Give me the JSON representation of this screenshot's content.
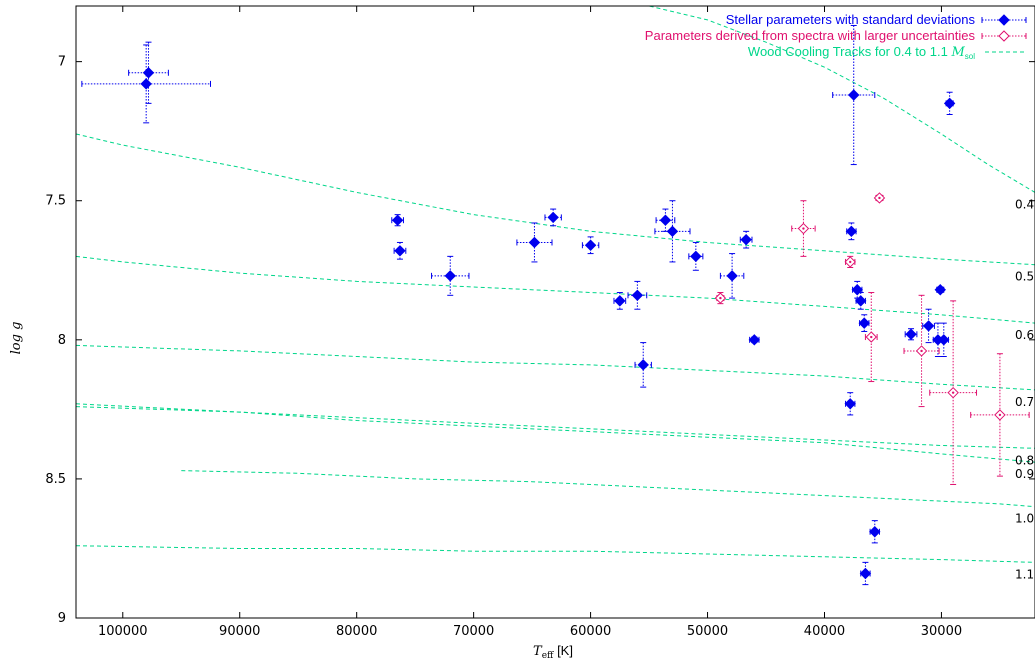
{
  "chart_data": {
    "type": "scatter",
    "xlabel": "T",
    "xlabel_sub": "eff",
    "xlabel_unit": "[K]",
    "ylabel": "log g",
    "xlim": [
      104000,
      22000
    ],
    "ylim": [
      6.8,
      9.0
    ],
    "x_reversed": true,
    "y_reversed": true,
    "x_ticks": [
      100000,
      90000,
      80000,
      70000,
      60000,
      50000,
      40000,
      30000
    ],
    "y_ticks": [
      7,
      7.5,
      8,
      8.5,
      9
    ],
    "legend_position": "top-right",
    "legend": [
      {
        "label": "Stellar parameters with standard deviations",
        "color": "#0000ee"
      },
      {
        "label": "Parameters derived from spectra with larger uncertainties",
        "color": "#e0106e"
      },
      {
        "label": "Wood Cooling Tracks for 0.4 to 1.1",
        "label_m": "M",
        "label_sub": "sol",
        "color": "#00d68a"
      }
    ],
    "series": [
      {
        "name": "Stellar parameters with standard deviations",
        "color": "#0000ee",
        "marker": "filled-diamond",
        "points": [
          {
            "x": 98000,
            "y": 7.08,
            "xerr": 5500,
            "yerr": 0.14
          },
          {
            "x": 97800,
            "y": 7.04,
            "xerr": 1700,
            "yerr": 0.11
          },
          {
            "x": 76500,
            "y": 7.57,
            "xerr": 500,
            "yerr": 0.02
          },
          {
            "x": 76300,
            "y": 7.68,
            "xerr": 500,
            "yerr": 0.03
          },
          {
            "x": 72000,
            "y": 7.77,
            "xerr": 1600,
            "yerr": 0.07
          },
          {
            "x": 64800,
            "y": 7.65,
            "xerr": 1500,
            "yerr": 0.07
          },
          {
            "x": 63200,
            "y": 7.56,
            "xerr": 700,
            "yerr": 0.03
          },
          {
            "x": 60000,
            "y": 7.66,
            "xerr": 700,
            "yerr": 0.03
          },
          {
            "x": 57500,
            "y": 7.86,
            "xerr": 500,
            "yerr": 0.03
          },
          {
            "x": 56000,
            "y": 7.84,
            "xerr": 800,
            "yerr": 0.05
          },
          {
            "x": 55500,
            "y": 8.09,
            "xerr": 700,
            "yerr": 0.08
          },
          {
            "x": 53600,
            "y": 7.57,
            "xerr": 800,
            "yerr": 0.04
          },
          {
            "x": 53000,
            "y": 7.61,
            "xerr": 1500,
            "yerr": 0.11
          },
          {
            "x": 51000,
            "y": 7.7,
            "xerr": 600,
            "yerr": 0.05
          },
          {
            "x": 47900,
            "y": 7.77,
            "xerr": 1000,
            "yerr": 0.08
          },
          {
            "x": 46700,
            "y": 7.64,
            "xerr": 500,
            "yerr": 0.03
          },
          {
            "x": 46000,
            "y": 8.0,
            "xerr": 400,
            "yerr": 0.01
          },
          {
            "x": 37500,
            "y": 7.12,
            "xerr": 1800,
            "yerr": 0.25
          },
          {
            "x": 37700,
            "y": 7.61,
            "xerr": 400,
            "yerr": 0.03
          },
          {
            "x": 37200,
            "y": 7.82,
            "xerr": 400,
            "yerr": 0.03
          },
          {
            "x": 36900,
            "y": 7.86,
            "xerr": 400,
            "yerr": 0.03
          },
          {
            "x": 36600,
            "y": 7.94,
            "xerr": 400,
            "yerr": 0.03
          },
          {
            "x": 37800,
            "y": 8.23,
            "xerr": 400,
            "yerr": 0.04
          },
          {
            "x": 35700,
            "y": 8.69,
            "xerr": 400,
            "yerr": 0.04
          },
          {
            "x": 36500,
            "y": 8.84,
            "xerr": 400,
            "yerr": 0.04
          },
          {
            "x": 32600,
            "y": 7.98,
            "xerr": 500,
            "yerr": 0.02
          },
          {
            "x": 31100,
            "y": 7.95,
            "xerr": 500,
            "yerr": 0.06
          },
          {
            "x": 30300,
            "y": 8.0,
            "xerr": 400,
            "yerr": 0.06
          },
          {
            "x": 29800,
            "y": 8.0,
            "xerr": 400,
            "yerr": 0.06
          },
          {
            "x": 30100,
            "y": 7.82,
            "xerr": 300,
            "yerr": 0.01
          },
          {
            "x": 29300,
            "y": 7.15,
            "xerr": 300,
            "yerr": 0.04
          }
        ]
      },
      {
        "name": "Parameters derived from spectra with larger uncertainties",
        "color": "#e0106e",
        "marker": "open-diamond",
        "points": [
          {
            "x": 41800,
            "y": 7.6,
            "xerr": 1000,
            "yerr": 0.1
          },
          {
            "x": 48900,
            "y": 7.85,
            "xerr": 300,
            "yerr": 0.02
          },
          {
            "x": 37800,
            "y": 7.72,
            "xerr": 400,
            "yerr": 0.02
          },
          {
            "x": 35300,
            "y": 7.49,
            "xerr": 300,
            "yerr": 0.01
          },
          {
            "x": 36000,
            "y": 7.99,
            "xerr": 500,
            "yerr": 0.16
          },
          {
            "x": 31700,
            "y": 8.04,
            "xerr": 1500,
            "yerr": 0.2
          },
          {
            "x": 29000,
            "y": 8.19,
            "xerr": 2000,
            "yerr": 0.33
          },
          {
            "x": 25000,
            "y": 8.27,
            "xerr": 2500,
            "yerr": 0.22
          }
        ]
      }
    ],
    "tracks": [
      {
        "label": "0.4",
        "points": [
          [
            98000,
            6.77
          ],
          [
            85000,
            6.77
          ],
          [
            80000,
            6.77
          ],
          [
            75000,
            6.77
          ],
          [
            70000,
            6.77
          ],
          [
            65000,
            6.77
          ],
          [
            60000,
            6.77
          ],
          [
            55000,
            6.8
          ],
          [
            50000,
            6.85
          ],
          [
            45000,
            6.93
          ],
          [
            40000,
            7.02
          ],
          [
            35000,
            7.13
          ],
          [
            30000,
            7.26
          ],
          [
            26000,
            7.37
          ],
          [
            22000,
            7.47
          ]
        ]
      },
      {
        "label": "0.5",
        "points": [
          [
            104000,
            7.26
          ],
          [
            100000,
            7.3
          ],
          [
            90000,
            7.38
          ],
          [
            80000,
            7.47
          ],
          [
            70000,
            7.55
          ],
          [
            60000,
            7.61
          ],
          [
            50000,
            7.65
          ],
          [
            40000,
            7.68
          ],
          [
            30000,
            7.71
          ],
          [
            26000,
            7.72
          ],
          [
            22000,
            7.73
          ]
        ]
      },
      {
        "label": "0.6",
        "points": [
          [
            104000,
            7.7
          ],
          [
            100000,
            7.72
          ],
          [
            90000,
            7.76
          ],
          [
            80000,
            7.79
          ],
          [
            70000,
            7.81
          ],
          [
            60000,
            7.83
          ],
          [
            50000,
            7.85
          ],
          [
            40000,
            7.88
          ],
          [
            30000,
            7.91
          ],
          [
            22000,
            7.94
          ]
        ]
      },
      {
        "label": "0.7",
        "points": [
          [
            104000,
            8.02
          ],
          [
            90000,
            8.04
          ],
          [
            80000,
            8.06
          ],
          [
            70000,
            8.08
          ],
          [
            60000,
            8.09
          ],
          [
            50000,
            8.11
          ],
          [
            40000,
            8.13
          ],
          [
            30000,
            8.16
          ],
          [
            22000,
            8.18
          ]
        ]
      },
      {
        "label": "0.8",
        "points": [
          [
            104000,
            8.24
          ],
          [
            90000,
            8.26
          ],
          [
            80000,
            8.28
          ],
          [
            70000,
            8.3
          ],
          [
            60000,
            8.32
          ],
          [
            50000,
            8.34
          ],
          [
            40000,
            8.36
          ],
          [
            30000,
            8.38
          ],
          [
            22000,
            8.39
          ]
        ]
      },
      {
        "label": "0.9",
        "points": [
          [
            104000,
            8.23
          ],
          [
            90000,
            8.26
          ],
          [
            80000,
            8.29
          ],
          [
            70000,
            8.31
          ],
          [
            60000,
            8.33
          ],
          [
            50000,
            8.35
          ],
          [
            40000,
            8.37
          ],
          [
            30000,
            8.41
          ],
          [
            22000,
            8.44
          ]
        ]
      },
      {
        "label": "1.0",
        "points": [
          [
            95000,
            8.47
          ],
          [
            85000,
            8.48
          ],
          [
            75000,
            8.5
          ],
          [
            65000,
            8.51
          ],
          [
            55000,
            8.53
          ],
          [
            45000,
            8.55
          ],
          [
            35000,
            8.57
          ],
          [
            25000,
            8.59
          ],
          [
            22000,
            8.6
          ]
        ]
      },
      {
        "label": "1.1",
        "points": [
          [
            104000,
            8.74
          ],
          [
            90000,
            8.75
          ],
          [
            80000,
            8.75
          ],
          [
            70000,
            8.76
          ],
          [
            60000,
            8.76
          ],
          [
            50000,
            8.77
          ],
          [
            40000,
            8.78
          ],
          [
            30000,
            8.79
          ],
          [
            22000,
            8.8
          ]
        ]
      }
    ],
    "colors": {
      "axis": "#000000",
      "blue": "#0000ee",
      "pink": "#e0106e",
      "track": "#00d68a"
    }
  }
}
